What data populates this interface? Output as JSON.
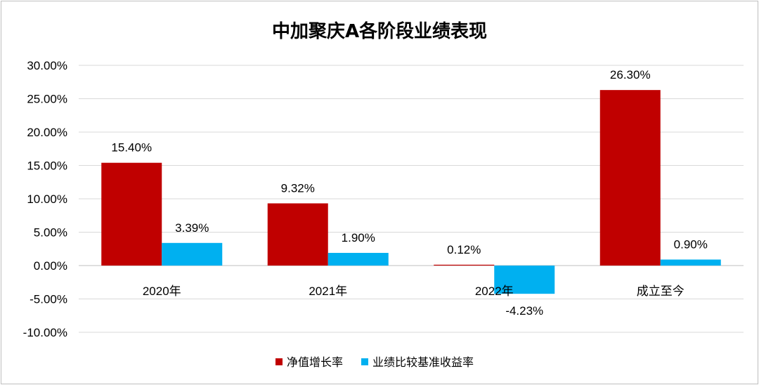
{
  "chart_data": {
    "type": "bar",
    "title": "中加聚庆A各阶段业绩表现",
    "categories": [
      "2020年",
      "2021年",
      "2022年",
      "成立至今"
    ],
    "series": [
      {
        "name": "净值增长率",
        "color": "#c00000",
        "values": [
          15.4,
          9.32,
          0.12,
          26.3
        ],
        "labels": [
          "15.40%",
          "9.32%",
          "0.12%",
          "26.30%"
        ]
      },
      {
        "name": "业绩比较基准收益率",
        "color": "#00b0f0",
        "values": [
          3.39,
          1.9,
          -4.23,
          0.9
        ],
        "labels": [
          "3.39%",
          "1.90%",
          "-4.23%",
          "0.90%"
        ]
      }
    ],
    "ylim": [
      -10,
      30
    ],
    "y_ticks": [
      30,
      25,
      20,
      15,
      10,
      5,
      0,
      -5,
      -10
    ],
    "y_tick_labels": [
      "30.00%",
      "25.00%",
      "20.00%",
      "15.00%",
      "10.00%",
      "5.00%",
      "0.00%",
      "-5.00%",
      "-10.00%"
    ],
    "grid": true,
    "legend_position": "bottom"
  }
}
